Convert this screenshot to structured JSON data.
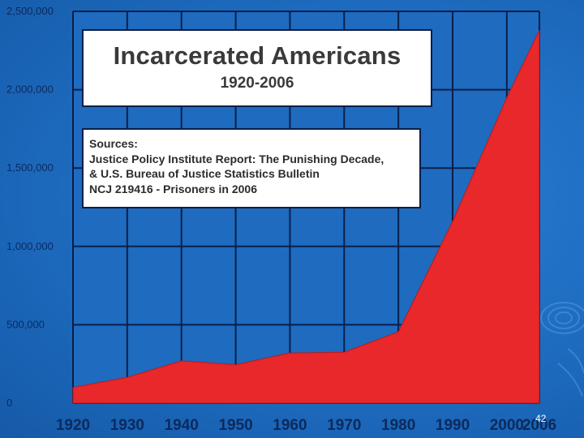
{
  "chart_data": {
    "type": "area",
    "title": "Incarcerated Americans",
    "subtitle": "1920-2006",
    "sources_lines": [
      "Sources:",
      "Justice Policy Institute Report: The Punishing Decade,",
      "& U.S. Bureau of Justice Statistics Bulletin",
      "NCJ 219416 - Prisoners in 2006"
    ],
    "x": [
      1920,
      1930,
      1940,
      1950,
      1960,
      1970,
      1980,
      1990,
      2000,
      2006
    ],
    "series": [
      {
        "values": [
          100000,
          165000,
          270000,
          245000,
          320000,
          325000,
          455000,
          1160000,
          1950000,
          2380000
        ]
      }
    ],
    "xlim": [
      1920,
      2006
    ],
    "ylim": [
      0,
      2500000
    ],
    "x_ticks": [
      "1920",
      "1930",
      "1940",
      "1950",
      "1960",
      "1970",
      "1980",
      "1990",
      "2000",
      "2006"
    ],
    "y_ticks": [
      "0",
      "500,000",
      "1,000,000",
      "1,500,000",
      "2,000,000",
      "2,500,000"
    ],
    "y_tick_values": [
      0,
      500000,
      1000000,
      1500000,
      2000000,
      2500000
    ],
    "grid": true,
    "colors": {
      "fill": "#e8282a",
      "plot_background": "#1e6bbf",
      "grid": "#0a1f4a"
    }
  },
  "page_number": "42"
}
